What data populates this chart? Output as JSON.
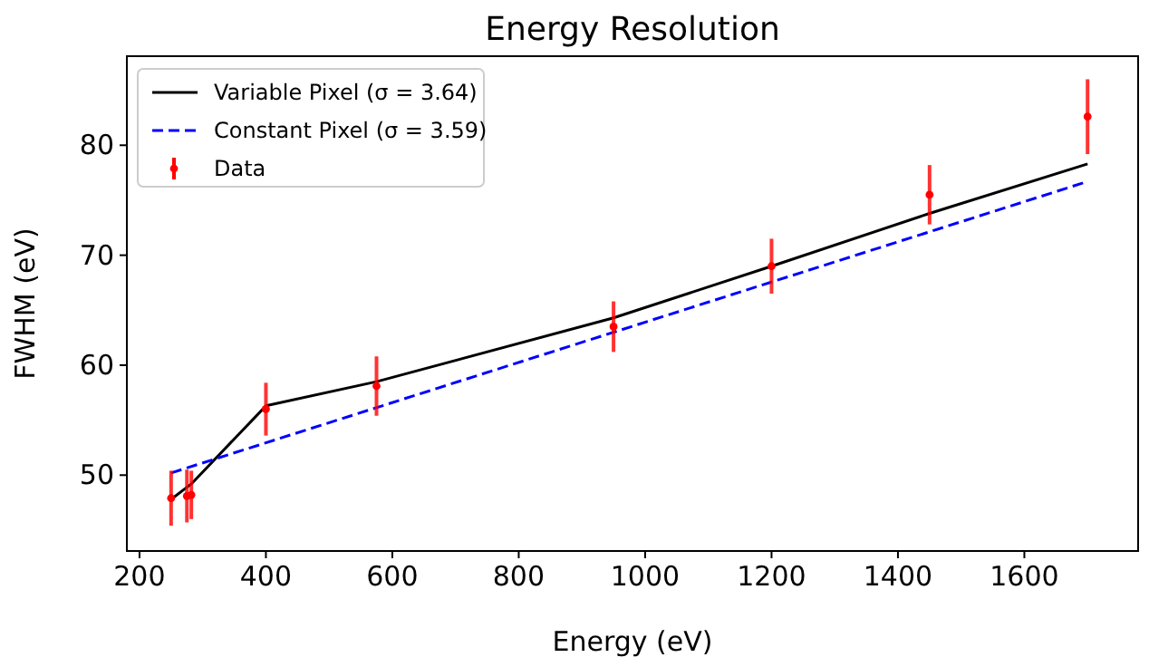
{
  "chart_data": {
    "type": "line",
    "title": "Energy Resolution",
    "xlabel": "Energy (eV)",
    "ylabel": "FWHM (eV)",
    "xlim": [
      180,
      1780
    ],
    "ylim": [
      43.1,
      88.1
    ],
    "xticks": [
      200,
      400,
      600,
      800,
      1000,
      1200,
      1400,
      1600
    ],
    "yticks": [
      50,
      60,
      70,
      80
    ],
    "legend": "top left",
    "grid": false,
    "series": [
      {
        "name": "Variable Pixel (σ = 3.64)",
        "color": "#000000",
        "line_style": "solid",
        "x": [
          250,
          275,
          282,
          400,
          575,
          950,
          1200,
          1450,
          1700
        ],
        "values": [
          47.8,
          48.9,
          49.2,
          56.3,
          58.5,
          64.3,
          69.0,
          73.8,
          78.3
        ]
      },
      {
        "name": "Constant Pixel (σ = 3.59)",
        "color": "#0000ff",
        "line_style": "dashed",
        "x": [
          250,
          1700
        ],
        "values": [
          50.2,
          76.7
        ]
      },
      {
        "name": "Data",
        "type": "scatter",
        "color": "#ff0000",
        "marker": "circle",
        "x": [
          250,
          275,
          282,
          400,
          575,
          950,
          1200,
          1450,
          1700
        ],
        "values": [
          47.9,
          48.1,
          48.2,
          56.0,
          58.1,
          63.5,
          69.0,
          75.5,
          82.6
        ],
        "errors": [
          2.5,
          2.4,
          2.2,
          2.4,
          2.7,
          2.3,
          2.5,
          2.7,
          3.4
        ]
      }
    ]
  }
}
